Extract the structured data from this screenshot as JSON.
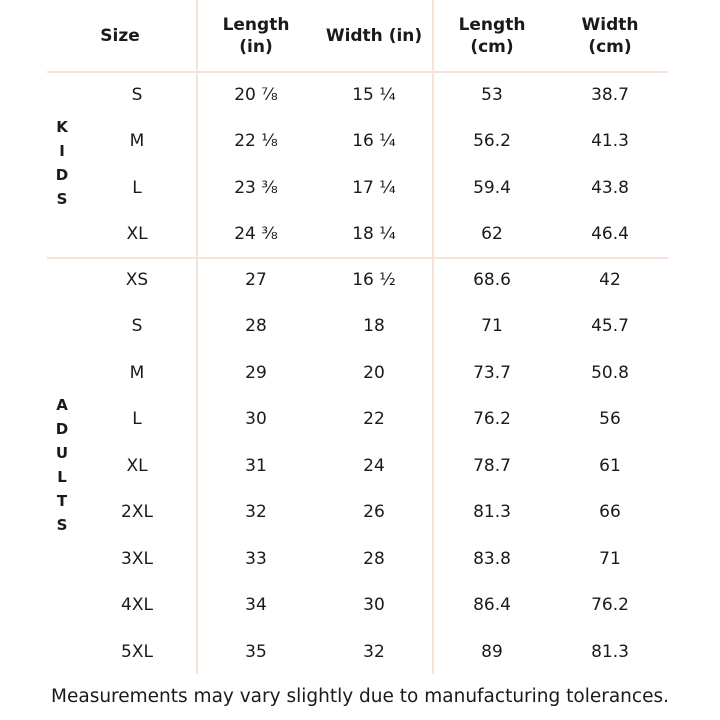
{
  "table": {
    "header": [
      [
        "Size"
      ],
      [
        "Length",
        "(in)"
      ],
      [
        "Width (in)"
      ],
      [
        "Length",
        "(cm)"
      ],
      [
        "Width",
        "(cm)"
      ]
    ],
    "groups": [
      {
        "label": "KIDS",
        "rows": [
          [
            "S",
            "20 ⅞",
            "15 ¼",
            "53",
            "38.7"
          ],
          [
            "M",
            "22 ⅛",
            "16 ¼",
            "56.2",
            "41.3"
          ],
          [
            "L",
            "23 ⅜",
            "17 ¼",
            "59.4",
            "43.8"
          ],
          [
            "XL",
            "24 ⅜",
            "18 ¼",
            "62",
            "46.4"
          ]
        ]
      },
      {
        "label": "ADULTS",
        "rows": [
          [
            "XS",
            "27",
            "16 ½",
            "68.6",
            "42"
          ],
          [
            "S",
            "28",
            "18",
            "71",
            "45.7"
          ],
          [
            "M",
            "29",
            "20",
            "73.7",
            "50.8"
          ],
          [
            "L",
            "30",
            "22",
            "76.2",
            "56"
          ],
          [
            "XL",
            "31",
            "24",
            "78.7",
            "61"
          ],
          [
            "2XL",
            "32",
            "26",
            "81.3",
            "66"
          ],
          [
            "3XL",
            "33",
            "28",
            "83.8",
            "71"
          ],
          [
            "4XL",
            "34",
            "30",
            "86.4",
            "76.2"
          ],
          [
            "5XL",
            "35",
            "32",
            "89",
            "81.3"
          ]
        ]
      }
    ],
    "footnote": "Measurements may vary slightly due to manufacturing tolerances."
  }
}
